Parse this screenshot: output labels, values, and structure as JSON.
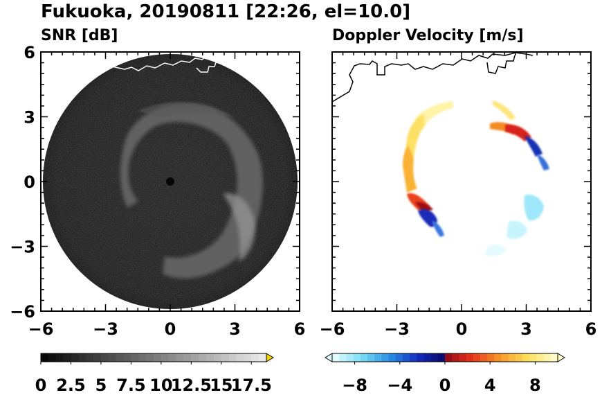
{
  "figure": {
    "title": "Fukuoka, 20190811 [22:26, el=10.0]"
  },
  "chart_data": [
    {
      "type": "heatmap",
      "subtitle": "SNR [dB]",
      "xlim": [
        -6,
        6
      ],
      "ylim": [
        -6,
        6
      ],
      "x_ticks": [
        -6,
        -3,
        0,
        3,
        6
      ],
      "y_ticks": [
        6,
        3,
        0,
        -3,
        -6
      ],
      "x_tick_labels": [
        "−6",
        "−3",
        "0",
        "3",
        "6"
      ],
      "y_tick_labels": [
        "6",
        "3",
        "0",
        "−3",
        "−6"
      ],
      "colormap": "grayscale",
      "colorbar": {
        "min": 0,
        "max": 18.75,
        "extend": "max",
        "tick_values": [
          0,
          2.5,
          5,
          7.5,
          10,
          12.5,
          15,
          17.5
        ],
        "tick_labels": [
          "0",
          "2.5",
          "5",
          "7.5",
          "10",
          "12.5",
          "15",
          "17.5"
        ]
      },
      "coverage_radius_km": 5.9
    },
    {
      "type": "heatmap",
      "subtitle": "Doppler Velocity [m/s]",
      "xlim": [
        -6,
        6
      ],
      "ylim": [
        -6,
        6
      ],
      "x_ticks": [
        -6,
        -3,
        0,
        3,
        6
      ],
      "y_ticks": [],
      "x_tick_labels": [
        "−6",
        "−3",
        "0",
        "3",
        "6"
      ],
      "colormap": "blue-white-red diverging",
      "colorbar": {
        "min": -10,
        "max": 10,
        "extend": "both",
        "tick_values": [
          -8,
          -4,
          0,
          4,
          8
        ],
        "tick_labels": [
          "−8",
          "−4",
          "0",
          "4",
          "8"
        ]
      }
    }
  ],
  "colors": {
    "snr_background": "#0c0c0c",
    "coastline_left": "#ffffff",
    "coastline_right": "#000000"
  }
}
